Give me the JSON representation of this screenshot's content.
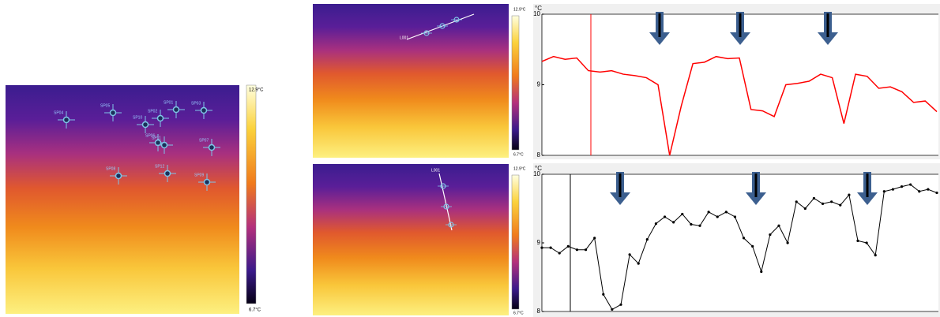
{
  "thermal_images": {
    "max_label": "12.9°C",
    "min_label": "6.7°C",
    "spots": [
      "SP04",
      "SP05",
      "SP01",
      "SP03",
      "SP02",
      "SP10",
      "SP06",
      "SP11",
      "SP07",
      "SP08",
      "SP12",
      "SP09"
    ],
    "line_label": "L001"
  },
  "chart_data": [
    {
      "type": "line",
      "y_label": "°C",
      "color": "#ff0000",
      "markers": false,
      "values": [
        9.33,
        9.4,
        9.36,
        9.38,
        9.2,
        9.18,
        9.2,
        9.15,
        9.13,
        9.1,
        9.0,
        8.0,
        8.7,
        9.3,
        9.32,
        9.4,
        9.37,
        9.38,
        8.65,
        8.63,
        8.55,
        9.0,
        9.02,
        9.05,
        9.15,
        9.1,
        8.45,
        9.15,
        9.12,
        8.95,
        8.97,
        8.9,
        8.75,
        8.77,
        8.62
      ],
      "ylim": [
        8,
        10
      ],
      "yticks": [
        8,
        9,
        10
      ]
    },
    {
      "type": "line",
      "y_label": "°C",
      "color": "#000000",
      "markers": true,
      "values": [
        8.93,
        8.93,
        8.85,
        8.95,
        8.9,
        8.9,
        9.07,
        8.25,
        8.03,
        8.1,
        8.83,
        8.7,
        9.05,
        9.28,
        9.38,
        9.3,
        9.42,
        9.27,
        9.25,
        9.45,
        9.38,
        9.45,
        9.38,
        9.07,
        8.95,
        8.58,
        9.12,
        9.25,
        9.0,
        9.6,
        9.5,
        9.65,
        9.57,
        9.6,
        9.55,
        9.7,
        9.03,
        9.0,
        8.82,
        9.75,
        9.78,
        9.82,
        9.85,
        9.75,
        9.78,
        9.73
      ],
      "ylim": [
        8,
        10
      ],
      "yticks": [
        8,
        9,
        10
      ]
    }
  ]
}
